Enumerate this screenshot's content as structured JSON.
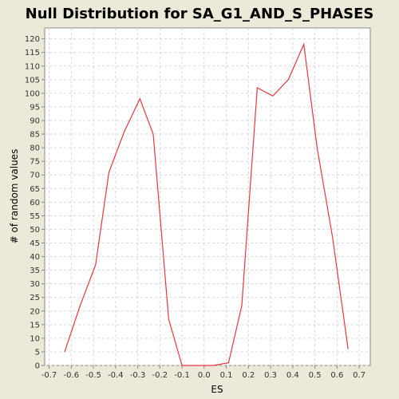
{
  "chart_data": {
    "type": "line",
    "title": "Null Distribution for SA_G1_AND_S_PHASES",
    "xlabel": "ES",
    "ylabel": "# of random values",
    "xlim": [
      -0.72,
      0.75
    ],
    "ylim": [
      0,
      124
    ],
    "xticks": [
      -0.7,
      -0.6,
      -0.5,
      -0.4,
      -0.3,
      -0.2,
      -0.1,
      0.0,
      0.1,
      0.2,
      0.3,
      0.4,
      0.5,
      0.6,
      0.7
    ],
    "xtick_labels": [
      "-0.7",
      "-0.6",
      "-0.5",
      "-0.4",
      "-0.3",
      "-0.2",
      "-0.1",
      "0.0",
      "0.1",
      "0.2",
      "0.3",
      "0.4",
      "0.5",
      "0.6",
      "0.7"
    ],
    "yticks": [
      0,
      5,
      10,
      15,
      20,
      25,
      30,
      35,
      40,
      45,
      50,
      55,
      60,
      65,
      70,
      75,
      80,
      85,
      90,
      95,
      100,
      105,
      110,
      115,
      120
    ],
    "grid": true,
    "series": [
      {
        "color": "#E8373F",
        "x": [
          -0.63,
          -0.56,
          -0.49,
          -0.43,
          -0.36,
          -0.29,
          -0.23,
          -0.16,
          -0.1,
          -0.03,
          0.04,
          0.11,
          0.17,
          0.24,
          0.31,
          0.38,
          0.45,
          0.51,
          0.58,
          0.65
        ],
        "y": [
          5,
          22,
          37,
          71,
          86,
          98,
          85,
          17,
          0,
          0,
          0,
          1,
          22,
          102,
          99,
          105,
          118,
          80,
          47,
          6
        ]
      }
    ]
  }
}
